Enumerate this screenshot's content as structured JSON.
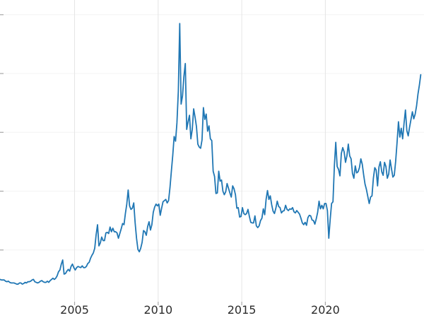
{
  "chart_data": {
    "type": "line",
    "title": "",
    "xlabel": "",
    "ylabel": "",
    "legend": "none",
    "grid": true,
    "background": "#ffffff",
    "line_color": "#2077b4",
    "grid_color": "#e5e5e5",
    "minor_grid_color": "#f3f3f3",
    "tick_mark_color": "#a8a8a8",
    "tick_label_color": "#2b2b2b",
    "x_start": 2000.54,
    "x_step": 0.08333,
    "xlim": [
      2000.54,
      2025.9
    ],
    "ylim": [
      0,
      52.5
    ],
    "x_ticks": [
      2005,
      2010,
      2015,
      2020
    ],
    "x_tick_labels": [
      "2005",
      "2010",
      "2015",
      "2020"
    ],
    "y_ticks": [
      10,
      20,
      30,
      40,
      50
    ],
    "values": [
      5.0,
      4.9,
      4.9,
      4.9,
      4.7,
      4.6,
      4.7,
      4.5,
      4.4,
      4.4,
      4.4,
      4.3,
      4.2,
      4.2,
      4.4,
      4.4,
      4.2,
      4.3,
      4.5,
      4.4,
      4.6,
      4.6,
      4.7,
      4.9,
      5.0,
      4.6,
      4.5,
      4.4,
      4.5,
      4.7,
      4.8,
      4.6,
      4.5,
      4.5,
      4.7,
      4.5,
      4.8,
      5.0,
      5.2,
      5.0,
      5.2,
      5.6,
      6.3,
      6.6,
      7.6,
      8.3,
      5.9,
      6.0,
      6.4,
      6.7,
      6.4,
      7.2,
      7.6,
      7.0,
      6.6,
      7.0,
      7.2,
      7.1,
      7.0,
      7.3,
      7.0,
      7.0,
      7.2,
      7.7,
      7.9,
      8.6,
      9.1,
      9.5,
      10.3,
      12.6,
      14.3,
      10.7,
      11.2,
      12.2,
      11.6,
      11.6,
      12.9,
      13.0,
      12.8,
      13.9,
      13.1,
      13.7,
      13.1,
      13.1,
      12.9,
      12.0,
      12.8,
      13.6,
      14.5,
      14.3,
      16.2,
      17.8,
      20.2,
      17.5,
      16.9,
      17.1,
      18.0,
      14.6,
      12.0,
      10.1,
      9.7,
      10.3,
      11.3,
      13.3,
      13.1,
      12.5,
      14.0,
      14.8,
      13.4,
      14.3,
      16.4,
      17.3,
      17.8,
      17.5,
      17.8,
      15.9,
      17.1,
      18.2,
      18.4,
      18.6,
      18.0,
      18.4,
      20.6,
      23.4,
      26.1,
      29.3,
      28.5,
      31.6,
      37.0,
      48.5,
      34.8,
      36.2,
      39.5,
      41.7,
      30.5,
      31.8,
      32.9,
      28.9,
      30.5,
      34.0,
      32.6,
      31.0,
      28.0,
      27.5,
      27.3,
      28.7,
      34.2,
      32.2,
      33.1,
      30.2,
      31.1,
      28.9,
      28.6,
      23.4,
      22.5,
      19.6,
      19.7,
      23.4,
      21.7,
      21.9,
      20.0,
      19.4,
      19.9,
      21.3,
      20.5,
      19.7,
      19.0,
      20.9,
      20.4,
      19.4,
      17.1,
      17.2,
      15.6,
      15.7,
      17.2,
      16.2,
      16.0,
      16.2,
      16.9,
      15.7,
      14.7,
      14.6,
      14.6,
      15.8,
      14.1,
      13.8,
      14.1,
      15.0,
      15.4,
      17.0,
      16.0,
      18.6,
      20.1,
      18.6,
      19.2,
      17.7,
      16.6,
      16.2,
      17.1,
      18.3,
      17.4,
      17.2,
      16.3,
      16.6,
      16.7,
      17.6,
      16.9,
      16.7,
      17.0,
      16.9,
      17.2,
      16.5,
      16.3,
      16.7,
      16.4,
      16.1,
      15.4,
      14.6,
      14.3,
      14.7,
      14.2,
      15.5,
      15.9,
      15.8,
      15.1,
      15.0,
      14.4,
      15.3,
      16.4,
      18.3,
      17.0,
      17.6,
      17.0,
      17.9,
      17.9,
      16.7,
      12.0,
      15.2,
      17.9,
      18.2,
      24.3,
      28.3,
      24.2,
      23.7,
      22.6,
      26.4,
      27.4,
      26.7,
      24.9,
      26.0,
      28.0,
      26.0,
      25.5,
      23.0,
      22.2,
      24.3,
      23.1,
      23.3,
      24.0,
      25.5,
      24.6,
      22.8,
      21.2,
      20.3,
      19.1,
      17.9,
      19.0,
      19.2,
      22.2,
      24.0,
      23.6,
      20.9,
      24.1,
      25.0,
      23.3,
      22.7,
      24.9,
      24.2,
      22.2,
      22.9,
      25.3,
      23.8,
      22.4,
      22.7,
      25.1,
      28.3,
      31.8,
      29.2,
      30.7,
      28.9,
      31.5,
      33.8,
      30.3,
      29.4,
      30.9,
      32.2,
      33.5,
      32.3,
      33.1,
      34.5,
      36.5,
      38.0,
      39.8
    ]
  }
}
